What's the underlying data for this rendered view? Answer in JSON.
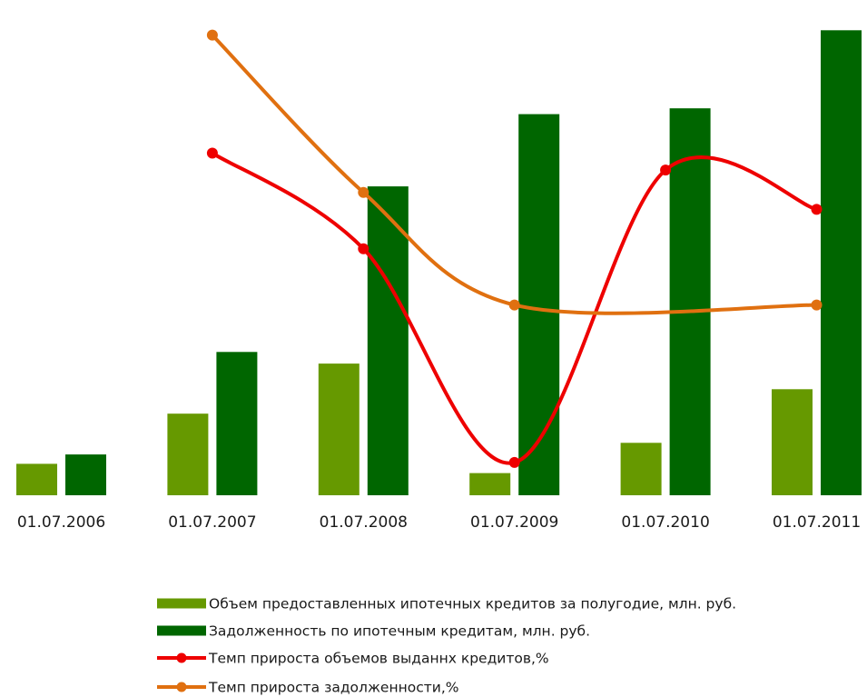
{
  "chart_data": {
    "type": "bar",
    "categories": [
      "01.07.2006",
      "01.07.2007",
      "01.07.2008",
      "01.07.2009",
      "01.07.2010",
      "01.07.2011"
    ],
    "series": [
      {
        "name": "Объем предоставленных ипотечных кредитов за полугодие, млн. руб.",
        "kind": "bar",
        "axis": "left",
        "color": "#669900",
        "values": [
          27,
          70,
          113,
          19,
          45,
          91
        ]
      },
      {
        "name": "Задолженность по ипотечным кредитам, млн. руб.",
        "kind": "bar",
        "axis": "left",
        "color": "#006600",
        "values": [
          35,
          123,
          265,
          327,
          332,
          399
        ]
      },
      {
        "name": "Темп прироста объемов выданнх кредитов,%",
        "kind": "line",
        "axis": "right",
        "color": "#ee0000",
        "values": [
          null,
          61,
          44,
          6,
          58,
          51
        ]
      },
      {
        "name": "Темп прироста задолженности,%",
        "kind": "line",
        "axis": "right",
        "color": "#e07010",
        "values": [
          null,
          82,
          54,
          34,
          null,
          34
        ]
      }
    ],
    "left_axis_range": [
      0,
      400
    ],
    "right_axis_range": [
      0,
      85
    ],
    "axes_visible": false,
    "grid": false,
    "legend_position": "bottom",
    "line_smoothing": "smooth"
  }
}
